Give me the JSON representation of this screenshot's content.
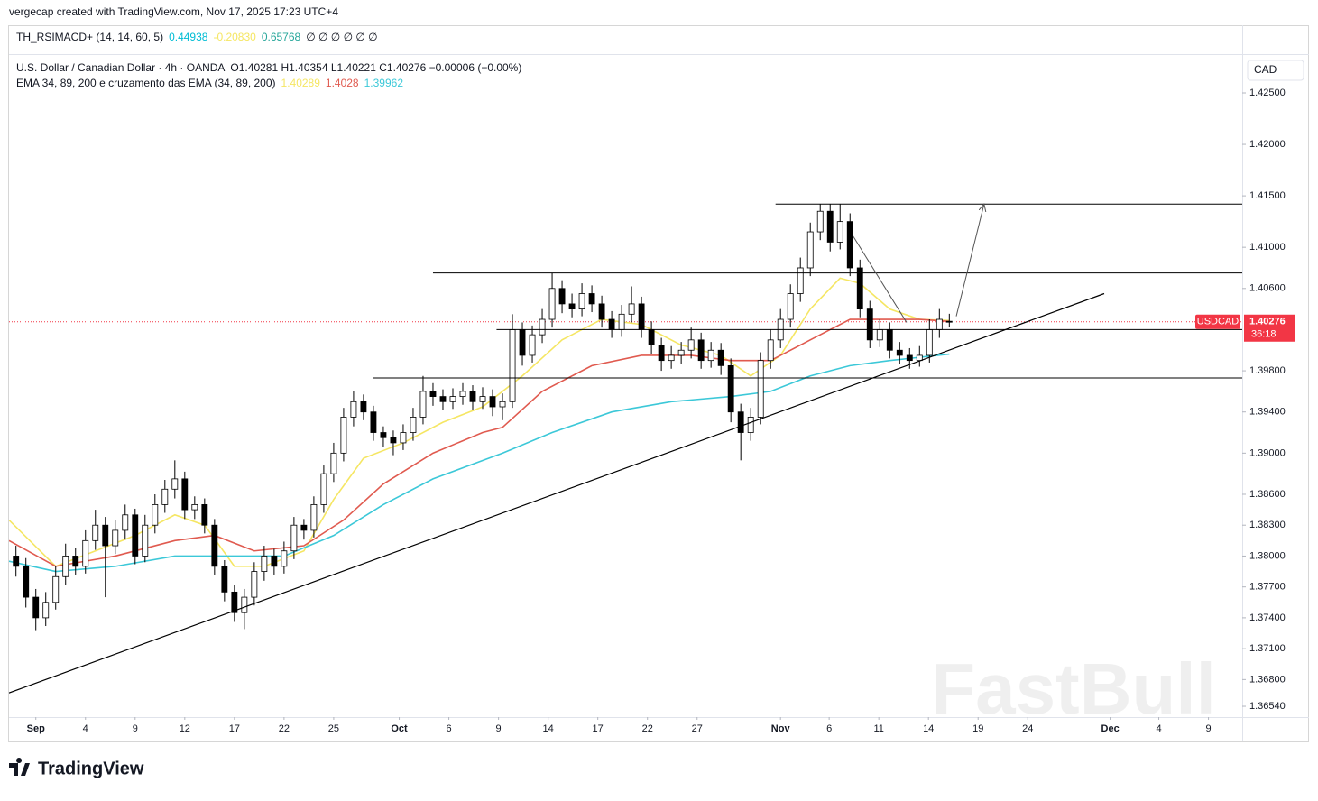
{
  "header": {
    "attribution": "vergecap created with TradingView.com, Nov 17, 2025 17:23 UTC+4",
    "logo": "TradingView"
  },
  "watermark": "FastBull",
  "indicator_pane": {
    "name": "TH_RSIMACD+ (14, 14, 60, 5)",
    "values": [
      {
        "text": "0.44938",
        "color": "#00bcd4"
      },
      {
        "text": "-0.20830",
        "color": "#f5e663"
      },
      {
        "text": "0.65768",
        "color": "#26a69a"
      }
    ],
    "extras": "∅ ∅ ∅ ∅ ∅ ∅"
  },
  "legend": {
    "symbol": "U.S. Dollar / Canadian Dollar · 4h · OANDA",
    "ohlc": "O1.40281 H1.40354 L1.40221 C1.40276 −0.00006 (−0.00%)",
    "ema_label": "EMA 34, 89, 200 e cruzamento das EMA (34, 89, 200)"
  },
  "chart_data": {
    "type": "candlestick",
    "currency": "CAD",
    "symbol": "USDCAD",
    "last_price": 1.40276,
    "countdown": "36:18",
    "last_price_color": "#f23645",
    "up_color": "#ffffff",
    "down_color": "#000000",
    "wick_color": "#000000",
    "xlim": [
      -2.7,
      121.5
    ],
    "ylim": [
      1.36435,
      1.42877
    ],
    "xticks": [
      {
        "value": 0,
        "label": "Sep"
      },
      {
        "value": 5,
        "label": "4"
      },
      {
        "value": 10,
        "label": "9"
      },
      {
        "value": 15,
        "label": "12"
      },
      {
        "value": 20,
        "label": "17"
      },
      {
        "value": 25,
        "label": "22"
      },
      {
        "value": 30,
        "label": "25"
      },
      {
        "value": 36.6,
        "label": "Oct"
      },
      {
        "value": 41.6,
        "label": "6"
      },
      {
        "value": 46.6,
        "label": "9"
      },
      {
        "value": 51.6,
        "label": "14"
      },
      {
        "value": 56.6,
        "label": "17"
      },
      {
        "value": 61.6,
        "label": "22"
      },
      {
        "value": 66.6,
        "label": "27"
      },
      {
        "value": 75,
        "label": "Nov"
      },
      {
        "value": 79.9,
        "label": "6"
      },
      {
        "value": 84.9,
        "label": "11"
      },
      {
        "value": 89.9,
        "label": "14"
      },
      {
        "value": 94.9,
        "label": "19"
      },
      {
        "value": 99.9,
        "label": "24"
      },
      {
        "value": 108.2,
        "label": "Dec"
      },
      {
        "value": 113.1,
        "label": "4"
      },
      {
        "value": 118.1,
        "label": "9"
      }
    ],
    "yticks": [
      {
        "value": 1.425,
        "label": "1.42500"
      },
      {
        "value": 1.42,
        "label": "1.42000"
      },
      {
        "value": 1.415,
        "label": "1.41500"
      },
      {
        "value": 1.41,
        "label": "1.41000"
      },
      {
        "value": 1.406,
        "label": "1.40600"
      },
      {
        "value": 1.398,
        "label": "1.39800"
      },
      {
        "value": 1.394,
        "label": "1.39400"
      },
      {
        "value": 1.39,
        "label": "1.39000"
      },
      {
        "value": 1.386,
        "label": "1.38600"
      },
      {
        "value": 1.383,
        "label": "1.38300"
      },
      {
        "value": 1.38,
        "label": "1.38000"
      },
      {
        "value": 1.377,
        "label": "1.37700"
      },
      {
        "value": 1.374,
        "label": "1.37400"
      },
      {
        "value": 1.371,
        "label": "1.37100"
      },
      {
        "value": 1.368,
        "label": "1.36800"
      },
      {
        "value": 1.3654,
        "label": "1.36540"
      }
    ],
    "x": [
      -2,
      -1,
      0,
      1,
      2,
      3,
      4,
      5,
      6,
      7,
      8,
      9,
      10,
      11,
      12,
      13,
      14,
      15,
      16,
      17,
      18,
      19,
      20,
      21,
      22,
      23,
      24,
      25,
      26,
      27,
      28,
      29,
      30,
      31,
      32,
      33,
      34,
      35,
      36,
      37,
      38,
      39,
      40,
      41,
      42,
      43,
      44,
      45,
      46,
      47,
      48,
      49,
      50,
      51,
      52,
      53,
      54,
      55,
      56,
      57,
      58,
      59,
      60,
      61,
      62,
      63,
      64,
      65,
      66,
      67,
      68,
      69,
      70,
      71,
      72,
      73,
      74,
      75,
      76,
      77,
      78,
      79,
      80,
      81,
      82,
      83,
      84,
      85,
      86,
      87,
      88,
      89,
      90,
      91,
      92
    ],
    "candles": [
      [
        1.38,
        1.381,
        1.378,
        1.379
      ],
      [
        1.379,
        1.3798,
        1.375,
        1.376
      ],
      [
        1.376,
        1.3768,
        1.3728,
        1.374
      ],
      [
        1.374,
        1.3765,
        1.3732,
        1.3755
      ],
      [
        1.3755,
        1.379,
        1.3748,
        1.378
      ],
      [
        1.378,
        1.3812,
        1.3772,
        1.38
      ],
      [
        1.38,
        1.3808,
        1.3782,
        1.379
      ],
      [
        1.379,
        1.3825,
        1.3783,
        1.3815
      ],
      [
        1.3815,
        1.3845,
        1.3806,
        1.383
      ],
      [
        1.383,
        1.3838,
        1.376,
        1.381
      ],
      [
        1.381,
        1.3835,
        1.3802,
        1.3825
      ],
      [
        1.3825,
        1.385,
        1.3816,
        1.384
      ],
      [
        1.384,
        1.3846,
        1.3792,
        1.38
      ],
      [
        1.38,
        1.384,
        1.3794,
        1.383
      ],
      [
        1.383,
        1.386,
        1.3822,
        1.385
      ],
      [
        1.385,
        1.3874,
        1.3842,
        1.3865
      ],
      [
        1.3865,
        1.3893,
        1.3856,
        1.3875
      ],
      [
        1.3875,
        1.3882,
        1.3836,
        1.3845
      ],
      [
        1.3845,
        1.3858,
        1.3836,
        1.385
      ],
      [
        1.385,
        1.3856,
        1.3822,
        1.383
      ],
      [
        1.383,
        1.3836,
        1.3782,
        1.379
      ],
      [
        1.379,
        1.3796,
        1.3756,
        1.3765
      ],
      [
        1.3765,
        1.3772,
        1.3736,
        1.3745
      ],
      [
        1.3745,
        1.3768,
        1.3729,
        1.376
      ],
      [
        1.376,
        1.3794,
        1.3752,
        1.3785
      ],
      [
        1.3785,
        1.381,
        1.3776,
        1.38
      ],
      [
        1.38,
        1.3807,
        1.3782,
        1.379
      ],
      [
        1.379,
        1.3814,
        1.3783,
        1.3805
      ],
      [
        1.3805,
        1.3838,
        1.3797,
        1.383
      ],
      [
        1.383,
        1.3836,
        1.3816,
        1.3825
      ],
      [
        1.3825,
        1.3858,
        1.3818,
        1.385
      ],
      [
        1.385,
        1.3888,
        1.3842,
        1.388
      ],
      [
        1.388,
        1.391,
        1.3872,
        1.39
      ],
      [
        1.39,
        1.3944,
        1.3892,
        1.3935
      ],
      [
        1.3935,
        1.396,
        1.3926,
        1.395
      ],
      [
        1.395,
        1.3957,
        1.3932,
        1.394
      ],
      [
        1.394,
        1.3946,
        1.3912,
        1.392
      ],
      [
        1.392,
        1.3926,
        1.3906,
        1.3915
      ],
      [
        1.3915,
        1.3922,
        1.3898,
        1.391
      ],
      [
        1.391,
        1.3928,
        1.3903,
        1.392
      ],
      [
        1.392,
        1.3944,
        1.3912,
        1.3935
      ],
      [
        1.3935,
        1.3975,
        1.3928,
        1.396
      ],
      [
        1.396,
        1.3968,
        1.3946,
        1.3955
      ],
      [
        1.3955,
        1.3962,
        1.3942,
        1.395
      ],
      [
        1.395,
        1.3963,
        1.3943,
        1.3955
      ],
      [
        1.3955,
        1.3968,
        1.3947,
        1.396
      ],
      [
        1.396,
        1.3966,
        1.3942,
        1.395
      ],
      [
        1.395,
        1.3964,
        1.3943,
        1.3955
      ],
      [
        1.3955,
        1.3962,
        1.3936,
        1.3945
      ],
      [
        1.3945,
        1.3958,
        1.3932,
        1.395
      ],
      [
        1.395,
        1.4035,
        1.3944,
        1.402
      ],
      [
        1.402,
        1.4027,
        1.3985,
        1.3995
      ],
      [
        1.3995,
        1.4024,
        1.3988,
        1.4015
      ],
      [
        1.4015,
        1.404,
        1.4007,
        1.403
      ],
      [
        1.403,
        1.4075,
        1.4022,
        1.406
      ],
      [
        1.406,
        1.4068,
        1.4036,
        1.4045
      ],
      [
        1.4045,
        1.4055,
        1.4032,
        1.404
      ],
      [
        1.404,
        1.4065,
        1.4033,
        1.4055
      ],
      [
        1.4055,
        1.4063,
        1.4037,
        1.4045
      ],
      [
        1.4045,
        1.4053,
        1.4022,
        1.403
      ],
      [
        1.403,
        1.4038,
        1.4012,
        1.402
      ],
      [
        1.402,
        1.4044,
        1.4013,
        1.4035
      ],
      [
        1.4035,
        1.4062,
        1.4027,
        1.4045
      ],
      [
        1.4045,
        1.4052,
        1.4012,
        1.402
      ],
      [
        1.402,
        1.4028,
        1.3996,
        1.4005
      ],
      [
        1.4005,
        1.4012,
        1.398,
        1.399
      ],
      [
        1.399,
        1.4004,
        1.3982,
        1.3995
      ],
      [
        1.3995,
        1.4008,
        1.3987,
        1.4
      ],
      [
        1.4,
        1.4022,
        1.3992,
        1.401
      ],
      [
        1.401,
        1.4017,
        1.3982,
        1.399
      ],
      [
        1.399,
        1.4008,
        1.3983,
        1.4
      ],
      [
        1.4,
        1.4007,
        1.3976,
        1.3985
      ],
      [
        1.3985,
        1.3992,
        1.393,
        1.394
      ],
      [
        1.394,
        1.3948,
        1.3893,
        1.392
      ],
      [
        1.392,
        1.3944,
        1.3912,
        1.3935
      ],
      [
        1.3935,
        1.3998,
        1.3928,
        1.399
      ],
      [
        1.399,
        1.402,
        1.3982,
        1.401
      ],
      [
        1.401,
        1.404,
        1.4002,
        1.403
      ],
      [
        1.403,
        1.4064,
        1.4022,
        1.4055
      ],
      [
        1.4055,
        1.409,
        1.4047,
        1.408
      ],
      [
        1.408,
        1.4124,
        1.4072,
        1.4115
      ],
      [
        1.4115,
        1.4142,
        1.4107,
        1.4135
      ],
      [
        1.4135,
        1.4142,
        1.4096,
        1.4105
      ],
      [
        1.4105,
        1.4142,
        1.4098,
        1.4125
      ],
      [
        1.4125,
        1.4133,
        1.4072,
        1.408
      ],
      [
        1.408,
        1.4088,
        1.4032,
        1.404
      ],
      [
        1.404,
        1.4048,
        1.4002,
        1.401
      ],
      [
        1.401,
        1.403,
        1.4003,
        1.402
      ],
      [
        1.402,
        1.4027,
        1.3992,
        1.4
      ],
      [
        1.4,
        1.4008,
        1.3987,
        1.3995
      ],
      [
        1.3995,
        1.4002,
        1.3982,
        1.399
      ],
      [
        1.399,
        1.4004,
        1.3984,
        1.3995
      ],
      [
        1.3995,
        1.403,
        1.3988,
        1.402
      ],
      [
        1.402,
        1.404,
        1.4012,
        1.403
      ],
      [
        1.40281,
        1.40354,
        1.40221,
        1.40276
      ]
    ],
    "series": [
      {
        "color": "#f5e663",
        "x": [
          -2.7,
          2,
          6,
          10,
          14,
          17,
          20,
          23,
          27,
          30,
          33,
          37,
          41,
          45,
          49,
          53,
          57,
          61,
          65,
          69,
          72,
          75,
          78,
          81,
          83,
          86,
          89,
          92
        ],
        "values": [
          1.3835,
          1.379,
          1.3805,
          1.382,
          1.384,
          1.383,
          1.379,
          1.379,
          1.3805,
          1.3855,
          1.3895,
          1.391,
          1.393,
          1.3945,
          1.3975,
          1.401,
          1.403,
          1.4025,
          1.4005,
          1.3995,
          1.3975,
          1.3995,
          1.404,
          1.407,
          1.4065,
          1.404,
          1.403,
          1.40289
        ]
      },
      {
        "color": "#e05a4f",
        "x": [
          -2.7,
          2,
          8,
          14,
          18,
          22,
          27,
          31,
          35,
          40,
          45,
          47,
          51,
          56,
          61,
          66,
          70,
          74,
          78,
          82,
          86,
          89,
          92
        ],
        "values": [
          1.3815,
          1.379,
          1.38,
          1.3815,
          1.382,
          1.3805,
          1.381,
          1.3835,
          1.387,
          1.39,
          1.392,
          1.3925,
          1.396,
          1.3985,
          1.3995,
          1.3995,
          1.399,
          1.399,
          1.401,
          1.403,
          1.403,
          1.403,
          1.4028
        ]
      },
      {
        "color": "#3cc8d8",
        "x": [
          -2.7,
          2,
          8,
          14,
          20,
          25,
          30,
          35,
          40,
          47,
          52,
          58,
          64,
          70,
          74,
          78,
          82,
          86,
          92
        ],
        "values": [
          1.3795,
          1.3785,
          1.379,
          1.38,
          1.38,
          1.38,
          1.382,
          1.385,
          1.3875,
          1.39,
          1.392,
          1.394,
          1.395,
          1.3955,
          1.396,
          1.3975,
          1.3985,
          1.399,
          1.39962
        ]
      }
    ],
    "hlines": [
      {
        "y": 1.4142,
        "x0": 74.5
      },
      {
        "y": 1.4075,
        "x0": 40
      },
      {
        "y": 1.402,
        "x0": 46.4
      },
      {
        "y": 1.3973,
        "x0": 34
      }
    ],
    "trendline": {
      "x": [
        -2.7,
        107.6
      ],
      "y": [
        1.3667,
        1.4055
      ]
    },
    "segments": [
      {
        "x": [
          82.3,
          87.7
        ],
        "y": [
          1.4111,
          1.4027
        ]
      },
      {
        "x": [
          92.7,
          95.5
        ],
        "y": [
          1.4033,
          1.4142
        ]
      }
    ]
  }
}
